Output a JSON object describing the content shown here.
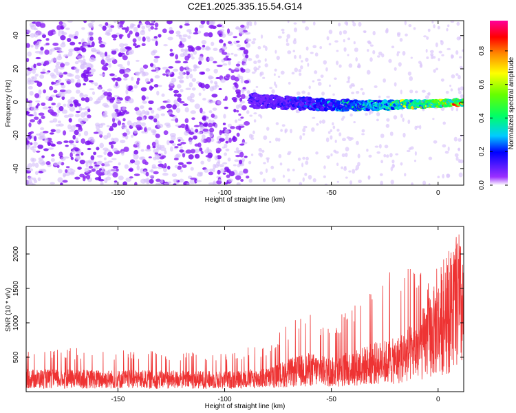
{
  "title": "C2E1.2025.335.15.54.G14",
  "chart_data": [
    {
      "type": "heatmap",
      "title": "C2E1.2025.335.15.54.G14",
      "xlabel": "Height of straight line (km)",
      "ylabel": "Frequency (Hz)",
      "xlim": [
        -193,
        12
      ],
      "ylim": [
        -50,
        49
      ],
      "x_ticks": [
        -150,
        -100,
        -50,
        0
      ],
      "x_tick_labels": [
        "-150",
        "-100",
        "-50",
        "0"
      ],
      "y_ticks": [
        -40,
        -20,
        0,
        20,
        40
      ],
      "y_tick_labels": [
        "-40",
        "-20",
        "0",
        "20",
        "40"
      ],
      "colorbar": {
        "label": "Normalized spectral amplitude",
        "range": [
          0,
          0.98
        ],
        "ticks": [
          0,
          0.2,
          0.4,
          0.6,
          0.8
        ],
        "tick_labels": [
          "0.0",
          "0.2",
          "0.4",
          "0.6",
          "0.8"
        ],
        "colormap": "rainbow (violet-blue-cyan-green-yellow-orange-red-magenta)"
      },
      "features": [
        {
          "name": "noise speckle (broadband)",
          "x_range": [
            -193,
            -88
          ],
          "freq_range": [
            -50,
            49
          ],
          "amplitude": 0.05
        },
        {
          "name": "sparse noise",
          "x_range": [
            -88,
            12
          ],
          "freq_range": [
            -50,
            49
          ],
          "amplitude": 0.02
        },
        {
          "name": "signal ridge",
          "x_range": [
            -88,
            12
          ],
          "freq_center_start": 1,
          "freq_center_end": 0,
          "amplitude_start": 0.15,
          "amplitude_end": 0.95
        }
      ]
    },
    {
      "type": "line",
      "xlabel": "Height of straight line (km)",
      "ylabel": "SNR (10 * v/v)",
      "xlim": [
        -193,
        12
      ],
      "ylim": [
        0,
        2400
      ],
      "x_ticks": [
        -150,
        -100,
        -50,
        0
      ],
      "x_tick_labels": [
        "-150",
        "-100",
        "-50",
        "0"
      ],
      "y_ticks": [
        500,
        1000,
        1500,
        2000
      ],
      "y_tick_labels": [
        "500",
        "1000",
        "1500",
        "2000"
      ],
      "series": [
        {
          "name": "SNR",
          "color": "#ee3333",
          "envelope_x": [
            -193,
            -150,
            -100,
            -80,
            -70,
            -60,
            -50,
            -40,
            -30,
            -20,
            -10,
            0,
            10,
            12
          ],
          "envelope_mean": [
            220,
            210,
            200,
            230,
            320,
            380,
            330,
            400,
            480,
            520,
            700,
            1100,
            1500,
            1300
          ],
          "envelope_peak": [
            650,
            620,
            600,
            700,
            1000,
            1150,
            1000,
            1300,
            1550,
            1900,
            1750,
            1900,
            2350,
            1800
          ]
        }
      ]
    }
  ]
}
